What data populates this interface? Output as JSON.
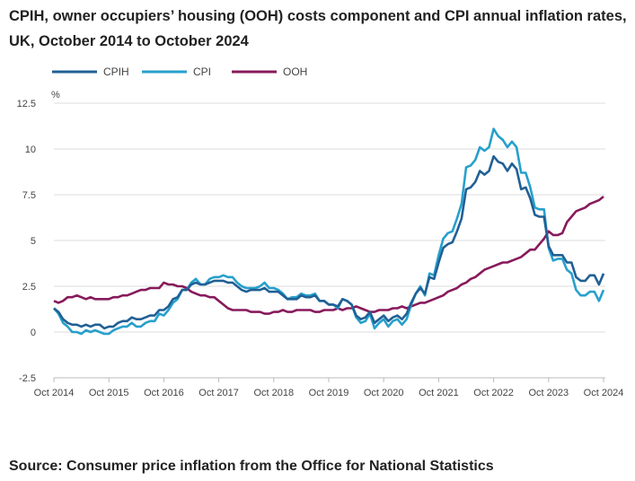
{
  "chart_data": {
    "type": "line",
    "title": "CPIH, owner occupiers’ housing (OOH) costs component and CPI annual inflation rates, UK, October 2014 to October 2024",
    "source": "Source: Consumer price inflation from the Office for National Statistics",
    "ylabel": "%",
    "ylim": [
      -2.5,
      12.5
    ],
    "yticks": [
      "12.5",
      "10",
      "7.5",
      "5",
      "2.5",
      "0",
      "-2.5"
    ],
    "ytick_values": [
      12.5,
      10,
      7.5,
      5,
      2.5,
      0,
      -2.5
    ],
    "xticks": [
      "Oct 2014",
      "Oct 2015",
      "Oct 2016",
      "Oct 2017",
      "Oct 2018",
      "Oct 2019",
      "Oct 2020",
      "Oct 2021",
      "Oct 2022",
      "Oct 2023",
      "Oct 2024"
    ],
    "x_start": "Oct 2014",
    "x_end": "Oct 2024",
    "grid": true,
    "legend_position": "top-left",
    "series": [
      {
        "name": "CPIH",
        "color": "#206095",
        "values": [
          1.3,
          1.1,
          0.7,
          0.5,
          0.4,
          0.4,
          0.3,
          0.4,
          0.3,
          0.4,
          0.4,
          0.2,
          0.3,
          0.3,
          0.5,
          0.6,
          0.6,
          0.8,
          0.7,
          0.7,
          0.8,
          0.9,
          0.9,
          1.2,
          1.2,
          1.4,
          1.8,
          1.9,
          2.3,
          2.3,
          2.6,
          2.7,
          2.6,
          2.6,
          2.7,
          2.8,
          2.8,
          2.8,
          2.7,
          2.7,
          2.5,
          2.3,
          2.2,
          2.3,
          2.3,
          2.3,
          2.4,
          2.2,
          2.2,
          2.2,
          2.0,
          1.8,
          1.8,
          1.8,
          2.0,
          1.9,
          1.9,
          2.0,
          1.7,
          1.7,
          1.5,
          1.5,
          1.4,
          1.8,
          1.7,
          1.5,
          0.9,
          0.7,
          0.8,
          1.1,
          0.5,
          0.7,
          0.9,
          0.6,
          0.8,
          0.9,
          0.7,
          1.0,
          1.6,
          2.1,
          2.4,
          2.1,
          3.0,
          2.9,
          3.8,
          4.6,
          4.8,
          4.9,
          5.5,
          6.2,
          7.8,
          7.9,
          8.2,
          8.8,
          8.6,
          8.8,
          9.6,
          9.3,
          9.2,
          8.8,
          9.2,
          8.9,
          7.8,
          7.9,
          7.3,
          6.4,
          6.3,
          6.3,
          4.7,
          4.2,
          4.2,
          4.2,
          3.8,
          3.8,
          3.0,
          2.8,
          2.8,
          3.1,
          3.1,
          2.6,
          3.2
        ]
      },
      {
        "name": "CPI",
        "color": "#27a0cc",
        "values": [
          1.3,
          1.0,
          0.5,
          0.3,
          0.0,
          0.0,
          -0.1,
          0.1,
          0.0,
          0.1,
          0.0,
          -0.1,
          -0.1,
          0.1,
          0.2,
          0.3,
          0.3,
          0.5,
          0.3,
          0.3,
          0.5,
          0.6,
          0.6,
          1.0,
          0.9,
          1.2,
          1.6,
          1.8,
          2.3,
          2.3,
          2.7,
          2.9,
          2.6,
          2.6,
          2.9,
          3.0,
          3.0,
          3.1,
          3.0,
          3.0,
          2.7,
          2.5,
          2.4,
          2.4,
          2.4,
          2.5,
          2.7,
          2.4,
          2.4,
          2.3,
          2.1,
          1.8,
          1.9,
          1.9,
          2.1,
          2.0,
          2.0,
          2.1,
          1.7,
          1.7,
          1.5,
          1.5,
          1.3,
          1.8,
          1.7,
          1.5,
          0.8,
          0.5,
          0.6,
          1.0,
          0.2,
          0.5,
          0.7,
          0.3,
          0.6,
          0.7,
          0.4,
          0.7,
          1.5,
          2.1,
          2.5,
          2.0,
          3.2,
          3.1,
          4.2,
          5.1,
          5.4,
          5.5,
          6.2,
          7.0,
          9.0,
          9.1,
          9.4,
          10.1,
          9.9,
          10.1,
          11.1,
          10.7,
          10.5,
          10.1,
          10.4,
          10.1,
          8.7,
          8.7,
          7.9,
          6.8,
          6.7,
          6.7,
          4.6,
          3.9,
          4.0,
          4.0,
          3.4,
          3.2,
          2.3,
          2.0,
          2.0,
          2.2,
          2.2,
          1.7,
          2.3
        ]
      },
      {
        "name": "OOH",
        "color": "#871a5b",
        "values": [
          1.7,
          1.6,
          1.7,
          1.9,
          1.9,
          2.0,
          1.9,
          1.8,
          1.9,
          1.8,
          1.8,
          1.8,
          1.8,
          1.9,
          1.9,
          2.0,
          2.0,
          2.1,
          2.2,
          2.3,
          2.3,
          2.4,
          2.4,
          2.4,
          2.7,
          2.6,
          2.6,
          2.5,
          2.5,
          2.4,
          2.2,
          2.1,
          2.0,
          2.0,
          1.9,
          1.9,
          1.7,
          1.5,
          1.3,
          1.2,
          1.2,
          1.2,
          1.2,
          1.1,
          1.1,
          1.1,
          1.0,
          1.0,
          1.1,
          1.1,
          1.2,
          1.1,
          1.1,
          1.2,
          1.2,
          1.2,
          1.2,
          1.1,
          1.1,
          1.2,
          1.2,
          1.2,
          1.3,
          1.2,
          1.3,
          1.3,
          1.4,
          1.3,
          1.2,
          1.1,
          1.1,
          1.2,
          1.2,
          1.2,
          1.3,
          1.3,
          1.4,
          1.3,
          1.4,
          1.5,
          1.6,
          1.6,
          1.7,
          1.8,
          1.9,
          2.0,
          2.2,
          2.3,
          2.4,
          2.6,
          2.7,
          2.9,
          3.0,
          3.2,
          3.4,
          3.5,
          3.6,
          3.7,
          3.8,
          3.8,
          3.9,
          4.0,
          4.1,
          4.3,
          4.5,
          4.5,
          4.8,
          5.1,
          5.5,
          5.3,
          5.3,
          5.4,
          6.0,
          6.3,
          6.6,
          6.7,
          6.8,
          7.0,
          7.1,
          7.2,
          7.4
        ]
      }
    ]
  }
}
